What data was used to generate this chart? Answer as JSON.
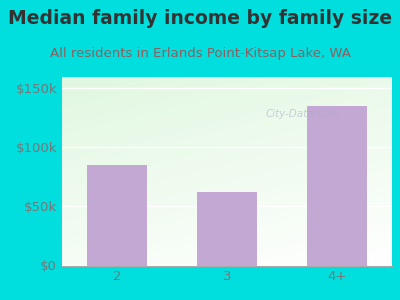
{
  "title": "Median family income by family size",
  "subtitle": "All residents in Erlands Point-Kitsap Lake, WA",
  "categories": [
    "2",
    "3",
    "4+"
  ],
  "values": [
    85000,
    62000,
    135000
  ],
  "bar_color": "#C4A8D4",
  "outer_bg": "#00DEDE",
  "title_color": "#333333",
  "subtitle_color": "#8B6060",
  "axis_label_color": "#777777",
  "ytick_labels": [
    "$0",
    "$50k",
    "$100k",
    "$150k"
  ],
  "ytick_values": [
    0,
    50000,
    100000,
    150000
  ],
  "ylim": [
    0,
    160000
  ],
  "title_fontsize": 13.5,
  "subtitle_fontsize": 9.5,
  "tick_fontsize": 9.5,
  "watermark": "City-Data.com"
}
